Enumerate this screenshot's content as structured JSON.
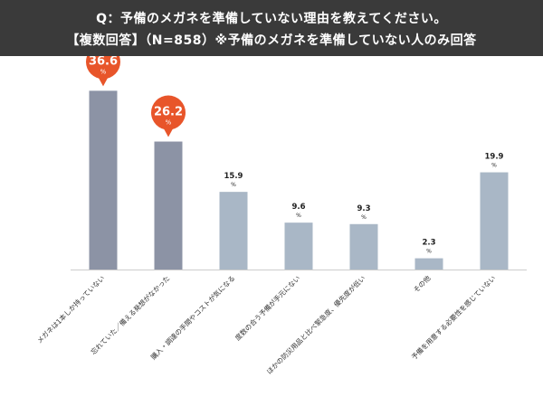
{
  "header": {
    "line1": "Q：予備のメガネを準備していない理由を教えてください。",
    "line2": "【複数回答】（N=858）※予備のメガネを準備していない人のみ回答"
  },
  "colors": {
    "header_bg": "#3a3a3a",
    "bar_highlight": "#8c93a5",
    "bar_normal": "#a9b7c6",
    "bubble": "#e8552a",
    "axis": "#cccccc"
  },
  "chart_data": {
    "type": "bar",
    "title": "",
    "xlabel": "",
    "ylabel": "",
    "unit": "%",
    "ylim": [
      0,
      40
    ],
    "grid": false,
    "categories": [
      "メガネは1本しか持っていない",
      "忘れていた／備える発想がなかった",
      "購入・調達の手間やコストが気になる",
      "度数の合う予備が手元にない",
      "ほかの防災用品と比べ緊急度、優先度が低い",
      "その他",
      "予備を用意する必要性を感じていない"
    ],
    "values": [
      36.6,
      26.2,
      15.9,
      9.6,
      9.3,
      2.3,
      19.9
    ],
    "highlighted": [
      true,
      true,
      false,
      false,
      false,
      false,
      false
    ]
  }
}
